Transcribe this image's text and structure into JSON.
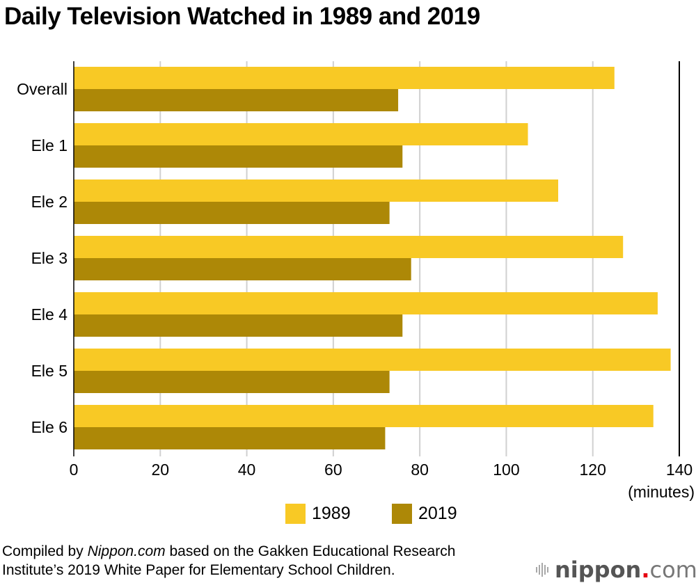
{
  "title": "Daily Television Watched in 1989 and 2019",
  "chart_data": {
    "type": "bar",
    "orientation": "horizontal",
    "title": "Daily Television Watched in 1989 and 2019",
    "categories": [
      "Overall",
      "Ele 1",
      "Ele 2",
      "Ele 3",
      "Ele 4",
      "Ele 5",
      "Ele 6"
    ],
    "series": [
      {
        "name": "1989",
        "color": "#f8c925",
        "values": [
          125,
          105,
          112,
          127,
          135,
          138,
          134
        ]
      },
      {
        "name": "2019",
        "color": "#ad8807",
        "values": [
          75,
          76,
          73,
          78,
          76,
          73,
          72
        ]
      }
    ],
    "xlabel": "(minutes)",
    "ylabel": "",
    "xlim": [
      0,
      140
    ],
    "xticks": [
      "0",
      "20",
      "40",
      "60",
      "80",
      "100",
      "120",
      "140"
    ],
    "grid": true,
    "legend": "bottom-center"
  },
  "legend": [
    {
      "label": "1989",
      "color": "#f8c925"
    },
    {
      "label": "2019",
      "color": "#ad8807"
    }
  ],
  "source": {
    "prefix": "Compiled by ",
    "brand": "Nippon.com",
    "suffix": " based on the Gakken Educational Research",
    "line2": "Institute’s 2019 White Paper for Elementary School Children."
  },
  "logo": {
    "word": "nippon",
    "dot": ".",
    "tld": "com",
    "icon": "sound-bars-icon"
  }
}
